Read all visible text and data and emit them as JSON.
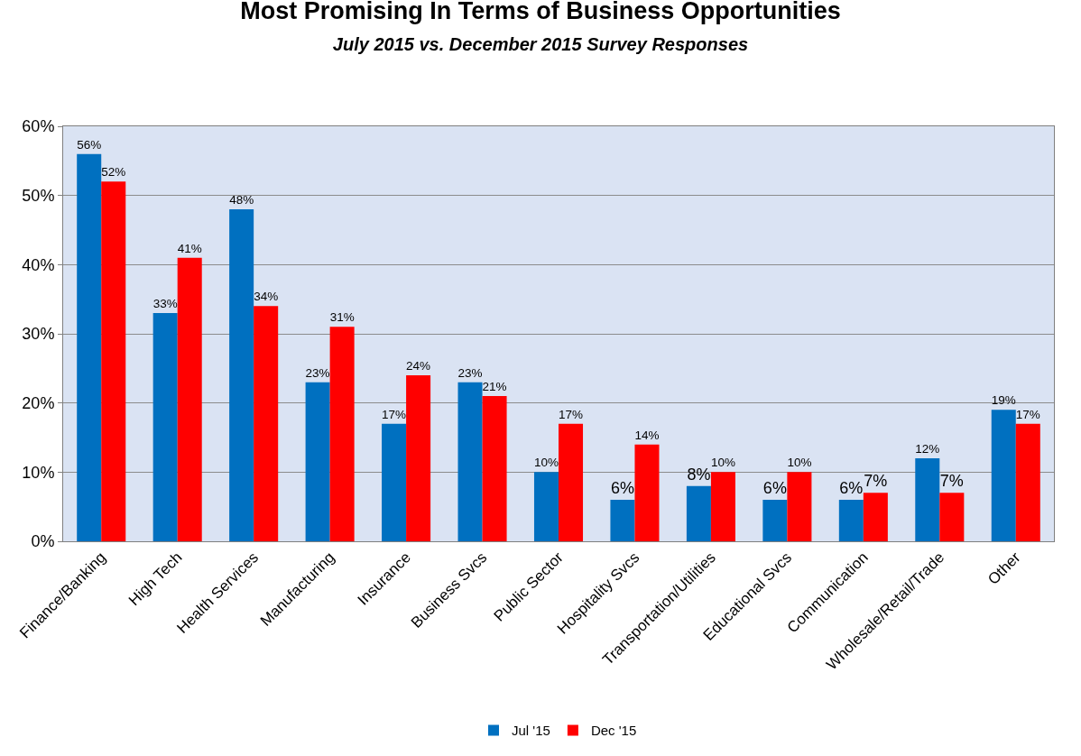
{
  "chart_data": {
    "type": "bar",
    "title": "Most Promising In Terms of Business Opportunities",
    "subtitle": "July 2015 vs. December 2015 Survey Responses",
    "categories": [
      "Finance/Banking",
      "High Tech",
      "Health Services",
      "Manufacturing",
      "Insurance",
      "Business Svcs",
      "Public Sector",
      "Hospitality Svcs",
      "Transportation/Utilities",
      "Educational Svcs",
      "Communication",
      "Wholesale/Retail/Trade",
      "Other"
    ],
    "series": [
      {
        "name": "Jul '15",
        "color": "#0070c0",
        "values": [
          56,
          33,
          48,
          23,
          17,
          23,
          10,
          6,
          8,
          6,
          6,
          12,
          19
        ],
        "value_labels": [
          "56%",
          "33%",
          "48%",
          "23%",
          "17%",
          "23%",
          "10%",
          "6%",
          "8%",
          "6%",
          "6%",
          "12%",
          "19%"
        ]
      },
      {
        "name": "Dec '15",
        "color": "#ff0000",
        "values": [
          52,
          41,
          34,
          31,
          24,
          21,
          17,
          14,
          10,
          10,
          7,
          7,
          17
        ],
        "value_labels": [
          "52%",
          "41%",
          "34%",
          "31%",
          "24%",
          "21%",
          "17%",
          "14%",
          "10%",
          "10%",
          "7%",
          "7%",
          "17%"
        ]
      }
    ],
    "ylim": [
      0,
      60
    ],
    "yticks": [
      {
        "value": 0,
        "label": "0%"
      },
      {
        "value": 10,
        "label": "10%"
      },
      {
        "value": 20,
        "label": "20%"
      },
      {
        "value": 30,
        "label": "30%"
      },
      {
        "value": 40,
        "label": "40%"
      },
      {
        "value": 50,
        "label": "50%"
      },
      {
        "value": 60,
        "label": "60%"
      }
    ],
    "grid": "y",
    "legend": "bottom"
  }
}
